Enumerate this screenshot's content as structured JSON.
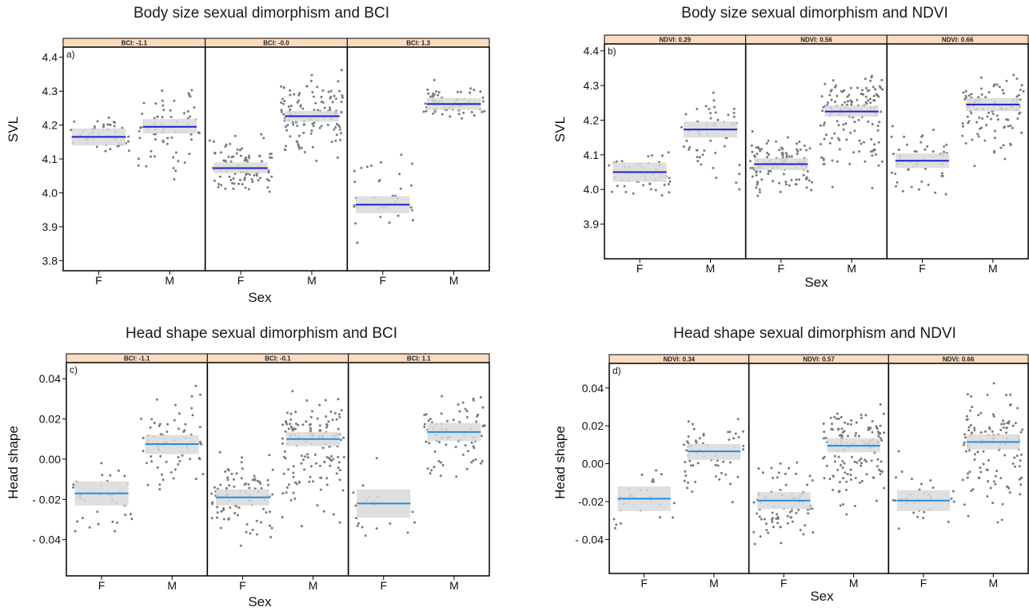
{
  "chart_data": [
    {
      "type": "scatter",
      "tag": "a)",
      "title": "Body size sexual dimorphism and BCI",
      "xlabel": "Sex",
      "ylabel": "SVL",
      "ylim": [
        3.77,
        4.43
      ],
      "yticks": [
        "3.8",
        "3.9",
        "4.0",
        "4.1",
        "4.2",
        "4.3",
        "4.4"
      ],
      "ytick_values": [
        3.8,
        3.9,
        4.0,
        4.1,
        4.2,
        4.3,
        4.4
      ],
      "categories": [
        "F",
        "M"
      ],
      "fit_color": "#1e22c8",
      "facets": [
        {
          "label": "BCI: -1.1",
          "fit": {
            "F": 4.165,
            "M": 4.195
          },
          "ci": {
            "F": [
              4.14,
              4.19
            ],
            "M": [
              4.175,
              4.218
            ]
          },
          "spread": {
            "F": [
              4.1,
              4.25
            ],
            "M": [
              4.0,
              4.35
            ]
          },
          "n": {
            "F": 45,
            "M": 65
          }
        },
        {
          "label": "BCI: -0.0",
          "fit": {
            "F": 4.073,
            "M": 4.226
          },
          "ci": {
            "F": [
              4.058,
              4.09
            ],
            "M": [
              4.21,
              4.242
            ]
          },
          "spread": {
            "F": [
              3.98,
              4.2
            ],
            "M": [
              4.05,
              4.38
            ]
          },
          "n": {
            "F": 90,
            "M": 120
          }
        },
        {
          "label": "BCI: 1.3",
          "fit": {
            "F": 3.965,
            "M": 4.262
          },
          "ci": {
            "F": [
              3.94,
              3.99
            ],
            "M": [
              4.245,
              4.28
            ]
          },
          "spread": {
            "F": [
              3.82,
              4.15
            ],
            "M": [
              4.2,
              4.34
            ]
          },
          "n": {
            "F": 35,
            "M": 70
          }
        }
      ]
    },
    {
      "type": "scatter",
      "tag": "b)",
      "title": "Body size sexual dimorphism and NDVI",
      "xlabel": "Sex",
      "ylabel": "SVL",
      "ylim": [
        3.8,
        4.42
      ],
      "yticks": [
        "3.9",
        "4.0",
        "4.1",
        "4.2",
        "4.3",
        "4.4"
      ],
      "ytick_values": [
        3.9,
        4.0,
        4.1,
        4.2,
        4.3,
        4.4
      ],
      "categories": [
        "F",
        "M"
      ],
      "fit_color": "#1e22c8",
      "facets": [
        {
          "label": "NDVI: 0.29",
          "fit": {
            "F": 4.05,
            "M": 4.173
          },
          "ci": {
            "F": [
              4.022,
              4.078
            ],
            "M": [
              4.15,
              4.196
            ]
          },
          "spread": {
            "F": [
              3.96,
              4.18
            ],
            "M": [
              3.93,
              4.32
            ]
          },
          "n": {
            "F": 45,
            "M": 55
          }
        },
        {
          "label": "NDVI: 0.56",
          "fit": {
            "F": 4.073,
            "M": 4.225
          },
          "ci": {
            "F": [
              4.056,
              4.09
            ],
            "M": [
              4.21,
              4.242
            ]
          },
          "spread": {
            "F": [
              3.95,
              4.2
            ],
            "M": [
              3.95,
              4.37
            ]
          },
          "n": {
            "F": 110,
            "M": 140
          }
        },
        {
          "label": "NDVI: 0.66",
          "fit": {
            "F": 4.083,
            "M": 4.245
          },
          "ci": {
            "F": [
              4.062,
              4.104
            ],
            "M": [
              4.226,
              4.264
            ]
          },
          "spread": {
            "F": [
              3.94,
              4.22
            ],
            "M": [
              4.05,
              4.36
            ]
          },
          "n": {
            "F": 50,
            "M": 100
          }
        }
      ]
    },
    {
      "type": "scatter",
      "tag": "c)",
      "title": "Head shape sexual dimorphism and BCI",
      "xlabel": "Sex",
      "ylabel": "Head  shape",
      "ylim": [
        -0.058,
        0.048
      ],
      "yticks": [
        "0.04",
        "0.02",
        "0.00",
        "- 0.02",
        "- 0.04"
      ],
      "ytick_values": [
        0.04,
        0.02,
        0.0,
        -0.02,
        -0.04
      ],
      "categories": [
        "F",
        "M"
      ],
      "fit_color": "#1f8fe6",
      "facets": [
        {
          "label": "BCI: -1.1",
          "fit": {
            "F": -0.017,
            "M": 0.0075
          },
          "ci": {
            "F": [
              -0.023,
              -0.011
            ],
            "M": [
              0.0025,
              0.012
            ]
          },
          "spread": {
            "F": [
              -0.045,
              0.005
            ],
            "M": [
              -0.022,
              0.042
            ]
          },
          "n": {
            "F": 35,
            "M": 70
          }
        },
        {
          "label": "BCI: -0.1",
          "fit": {
            "F": -0.019,
            "M": 0.01
          },
          "ci": {
            "F": [
              -0.023,
              -0.015
            ],
            "M": [
              0.0065,
              0.0135
            ]
          },
          "spread": {
            "F": [
              -0.052,
              0.008
            ],
            "M": [
              -0.045,
              0.04
            ]
          },
          "n": {
            "F": 90,
            "M": 140
          }
        },
        {
          "label": "BCI: 1.1",
          "fit": {
            "F": -0.022,
            "M": 0.0135
          },
          "ci": {
            "F": [
              -0.029,
              -0.015
            ],
            "M": [
              0.009,
              0.018
            ]
          },
          "spread": {
            "F": [
              -0.05,
              0.008
            ],
            "M": [
              -0.022,
              0.04
            ]
          },
          "n": {
            "F": 20,
            "M": 75
          }
        }
      ]
    },
    {
      "type": "scatter",
      "tag": "d)",
      "title": "Head shape sexual dimorphism and NDVI",
      "xlabel": "Sex",
      "ylabel": "Head shape",
      "ylim": [
        -0.058,
        0.053
      ],
      "yticks": [
        "0.04",
        "0.02",
        "0.00",
        "-0.02",
        "- 0.04"
      ],
      "ytick_values": [
        0.04,
        0.02,
        0.0,
        -0.02,
        -0.04
      ],
      "categories": [
        "F",
        "M"
      ],
      "fit_color": "#1f8fe6",
      "facets": [
        {
          "label": "NDVI: 0.34",
          "fit": {
            "F": -0.0185,
            "M": 0.0065
          },
          "ci": {
            "F": [
              -0.025,
              -0.012
            ],
            "M": [
              0.002,
              0.0105
            ]
          },
          "spread": {
            "F": [
              -0.045,
              0.003
            ],
            "M": [
              -0.03,
              0.034
            ]
          },
          "n": {
            "F": 30,
            "M": 60
          }
        },
        {
          "label": "NDVI: 0.57",
          "fit": {
            "F": -0.0195,
            "M": 0.0095
          },
          "ci": {
            "F": [
              -0.024,
              -0.015
            ],
            "M": [
              0.006,
              0.0135
            ]
          },
          "spread": {
            "F": [
              -0.05,
              0.01
            ],
            "M": [
              -0.038,
              0.04
            ]
          },
          "n": {
            "F": 80,
            "M": 140
          }
        },
        {
          "label": "NDVI: 0.66",
          "fit": {
            "F": -0.0195,
            "M": 0.0115
          },
          "ci": {
            "F": [
              -0.025,
              -0.014
            ],
            "M": [
              0.0075,
              0.0155
            ]
          },
          "spread": {
            "F": [
              -0.05,
              0.013
            ],
            "M": [
              -0.045,
              0.05
            ]
          },
          "n": {
            "F": 30,
            "M": 120
          }
        }
      ]
    }
  ],
  "colors": {
    "strip_fill": "#fbdcc0",
    "ci_band": "#d9d9d9",
    "points": "#7a7a7a",
    "frame": "#000000"
  }
}
